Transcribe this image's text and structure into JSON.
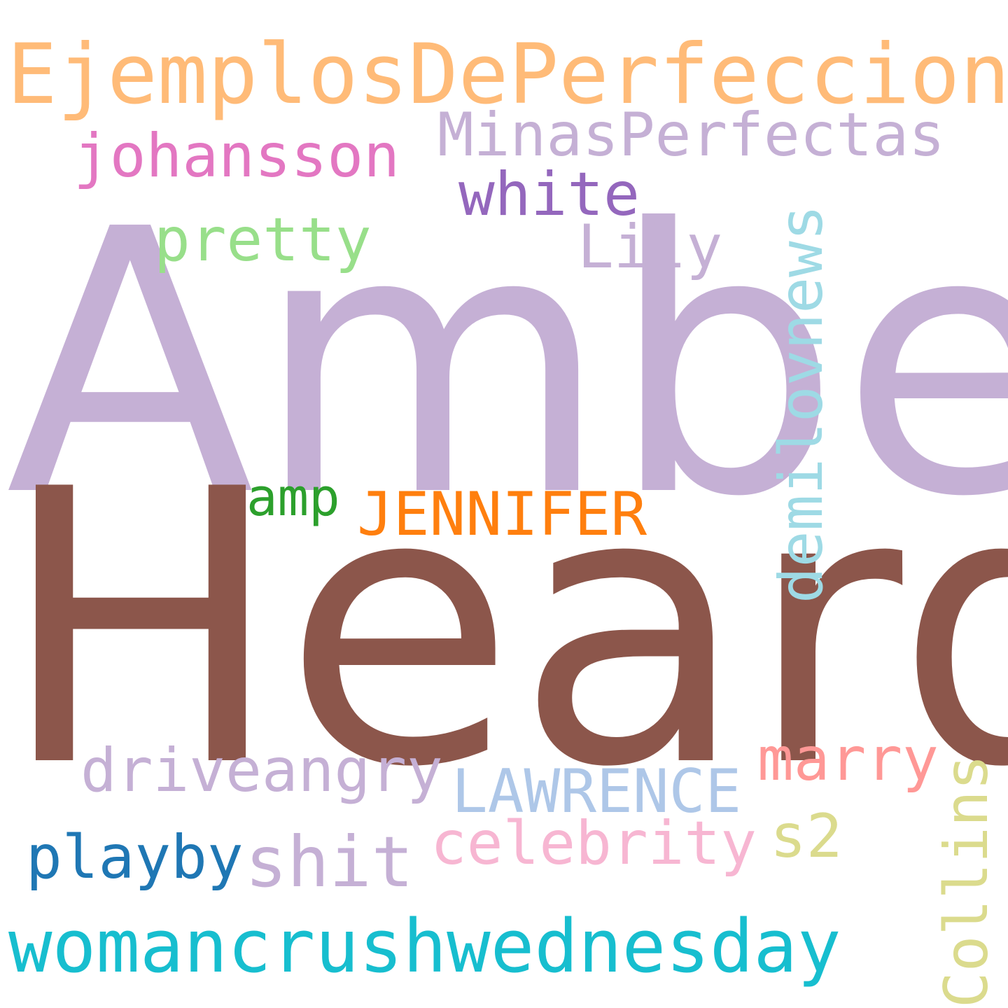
{
  "words": [
    {
      "id": "amber",
      "text": "Amber",
      "color": "#c5b0d5"
    },
    {
      "id": "heard",
      "text": "Heard",
      "color": "#8c564b"
    },
    {
      "id": "ejemplos",
      "text": "EjemplosDePerfeccion",
      "color": "#ffbb78"
    },
    {
      "id": "minas",
      "text": "MinasPerfectas",
      "color": "#c5b0d5"
    },
    {
      "id": "johansson",
      "text": "johansson",
      "color": "#e377c2"
    },
    {
      "id": "white",
      "text": "white",
      "color": "#9467bd"
    },
    {
      "id": "pretty",
      "text": "pretty",
      "color": "#98df8a"
    },
    {
      "id": "lily",
      "text": "Lily",
      "color": "#c5b0d5"
    },
    {
      "id": "demilovnews",
      "text": "demilovnews",
      "color": "#9edae5"
    },
    {
      "id": "amp",
      "text": "amp",
      "color": "#2ca02c"
    },
    {
      "id": "jennifer",
      "text": "JENNIFER",
      "color": "#ff7f0e"
    },
    {
      "id": "marry",
      "text": "marry",
      "color": "#ff9896"
    },
    {
      "id": "driveangry",
      "text": "driveangry",
      "color": "#c5b0d5"
    },
    {
      "id": "lawrence",
      "text": "LAWRENCE",
      "color": "#aec7e8"
    },
    {
      "id": "collins",
      "text": "Collins",
      "color": "#dbdb8d"
    },
    {
      "id": "celebrity",
      "text": "celebrity",
      "color": "#f7b6d2"
    },
    {
      "id": "s2",
      "text": "s2",
      "color": "#dbdb8d"
    },
    {
      "id": "playby",
      "text": "playby",
      "color": "#1f77b4"
    },
    {
      "id": "shit",
      "text": "shit",
      "color": "#c5b0d5"
    },
    {
      "id": "womancrush",
      "text": "womancrushwednesday",
      "color": "#17becf"
    }
  ]
}
